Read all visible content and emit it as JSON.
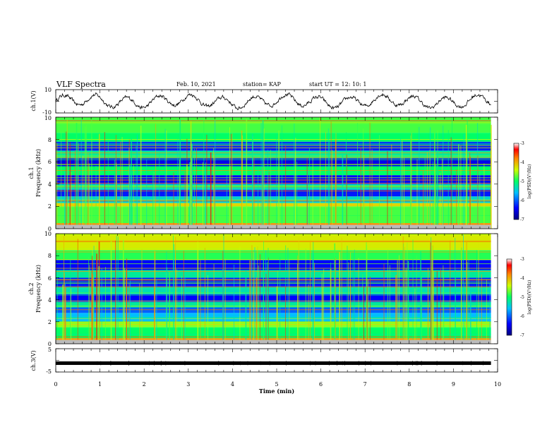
{
  "header": {
    "title": "VLF Spectra",
    "date": "Feb. 10, 2021",
    "station": "station= KAP",
    "start": "start  UT  =   12: 10: 1"
  },
  "colors": {
    "spectrogram_low": "#0000aa",
    "spectrogram_mid": "#33cc33",
    "spectrogram_high": "#dd0000",
    "trace": "#000000"
  },
  "chart_data": [
    {
      "type": "line",
      "panel": "ch1-waveform",
      "ylabel": "ch.1(V)",
      "ylim": [
        -10,
        10
      ],
      "ytick_labels": [
        "10",
        "-10"
      ],
      "xlim": [
        0,
        10
      ],
      "x_end": 9.85,
      "note_values": "oscillating waveform roughly -5 to 5 V with ~0.7 min period"
    },
    {
      "type": "heatmap",
      "panel": "ch1-spectrogram",
      "ylabel_top": "ch.1",
      "ylabel": "Frequency (kHz)",
      "ylim": [
        0,
        10
      ],
      "ytick_labels": [
        "0",
        "2",
        "4",
        "6",
        "8",
        "10"
      ],
      "xlim": [
        0,
        10
      ],
      "x_end": 9.85,
      "freq_bands_log_psd": [
        {
          "from": 0.0,
          "to": 0.5,
          "value": -3.8
        },
        {
          "from": 0.5,
          "to": 2.0,
          "value": -4.8
        },
        {
          "from": 2.0,
          "to": 2.3,
          "value": -4.2
        },
        {
          "from": 2.3,
          "to": 2.9,
          "value": -5.4
        },
        {
          "from": 2.9,
          "to": 3.5,
          "value": -6.3
        },
        {
          "from": 3.5,
          "to": 4.0,
          "value": -5.3
        },
        {
          "from": 4.0,
          "to": 4.8,
          "value": -6.4
        },
        {
          "from": 4.8,
          "to": 5.6,
          "value": -5.0
        },
        {
          "from": 5.6,
          "to": 6.3,
          "value": -6.5
        },
        {
          "from": 6.3,
          "to": 7.0,
          "value": -5.2
        },
        {
          "from": 7.0,
          "to": 7.8,
          "value": -6.3
        },
        {
          "from": 7.8,
          "to": 8.6,
          "value": -5.0
        },
        {
          "from": 8.6,
          "to": 10.0,
          "value": -4.8
        }
      ],
      "colorbar": {
        "label": "log(PSD)(V²/Hz)",
        "ticks": [
          "-3",
          "-4",
          "-5",
          "-6",
          "-7"
        ],
        "range": [
          -7,
          -3
        ]
      }
    },
    {
      "type": "heatmap",
      "panel": "ch2-spectrogram",
      "ylabel_top": "ch.2",
      "ylabel": "Frequency (kHz)",
      "ylim": [
        0,
        10
      ],
      "ytick_labels": [
        "0",
        "2",
        "4",
        "6",
        "8",
        "10"
      ],
      "xlim": [
        0,
        10
      ],
      "x_end": 9.85,
      "freq_bands_log_psd": [
        {
          "from": 0.0,
          "to": 0.5,
          "value": -3.9
        },
        {
          "from": 0.5,
          "to": 1.5,
          "value": -5.0
        },
        {
          "from": 1.5,
          "to": 2.0,
          "value": -4.6
        },
        {
          "from": 2.0,
          "to": 2.8,
          "value": -5.6
        },
        {
          "from": 2.8,
          "to": 3.3,
          "value": -6.0
        },
        {
          "from": 3.3,
          "to": 3.8,
          "value": -5.2
        },
        {
          "from": 3.8,
          "to": 4.5,
          "value": -6.4
        },
        {
          "from": 4.5,
          "to": 5.2,
          "value": -5.3
        },
        {
          "from": 5.2,
          "to": 6.0,
          "value": -6.3
        },
        {
          "from": 6.0,
          "to": 6.7,
          "value": -5.2
        },
        {
          "from": 6.7,
          "to": 7.6,
          "value": -6.4
        },
        {
          "from": 7.6,
          "to": 8.5,
          "value": -4.9
        },
        {
          "from": 8.5,
          "to": 10.0,
          "value": -4.3
        }
      ],
      "colorbar": {
        "label": "log(PSD)(V²/Hz)",
        "ticks": [
          "-3",
          "-4",
          "-5",
          "-6",
          "-7"
        ],
        "range": [
          -7,
          -3
        ]
      }
    },
    {
      "type": "line",
      "panel": "ch3-waveform",
      "ylabel": "ch.3(V)",
      "ylim": [
        -5,
        5
      ],
      "ytick_labels": [
        "5",
        "0",
        "-5"
      ],
      "xlim": [
        0,
        10
      ],
      "x_end": 9.85,
      "level": -1.2,
      "note_values": "dense noisy band around -1.2 V"
    }
  ],
  "xaxis": {
    "label": "Time (min)",
    "ticks": [
      "0",
      "1",
      "2",
      "3",
      "4",
      "5",
      "6",
      "7",
      "8",
      "9",
      "10"
    ],
    "range": [
      0,
      10
    ]
  }
}
